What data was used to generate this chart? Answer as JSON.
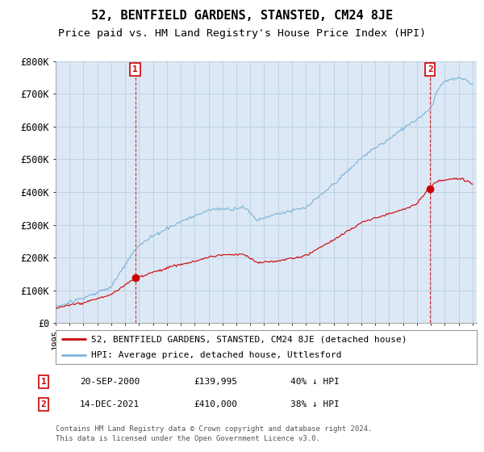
{
  "title": "52, BENTFIELD GARDENS, STANSTED, CM24 8JE",
  "subtitle": "Price paid vs. HM Land Registry's House Price Index (HPI)",
  "ylim": [
    0,
    800000
  ],
  "yticks": [
    0,
    100000,
    200000,
    300000,
    400000,
    500000,
    600000,
    700000,
    800000
  ],
  "ytick_labels": [
    "£0",
    "£100K",
    "£200K",
    "£300K",
    "£400K",
    "£500K",
    "£600K",
    "£700K",
    "£800K"
  ],
  "x_start_year": 1995,
  "x_end_year": 2025,
  "hpi_color": "#7ab4d8",
  "price_color": "#cc0000",
  "sale1_x": 2000.72,
  "sale1_price": 139995,
  "sale2_x": 2021.95,
  "sale2_price": 410000,
  "legend_line1": "52, BENTFIELD GARDENS, STANSTED, CM24 8JE (detached house)",
  "legend_line2": "HPI: Average price, detached house, Uttlesford",
  "footer1": "Contains HM Land Registry data © Crown copyright and database right 2024.",
  "footer2": "This data is licensed under the Open Government Licence v3.0.",
  "table_row1": [
    "1",
    "20-SEP-2000",
    "£139,995",
    "40% ↓ HPI"
  ],
  "table_row2": [
    "2",
    "14-DEC-2021",
    "£410,000",
    "38% ↓ HPI"
  ],
  "plot_bg_color": "#dce8f5",
  "background_color": "#ffffff",
  "grid_color": "#b8cfe0",
  "title_fontsize": 11,
  "subtitle_fontsize": 9.5,
  "tick_fontsize": 8.5
}
